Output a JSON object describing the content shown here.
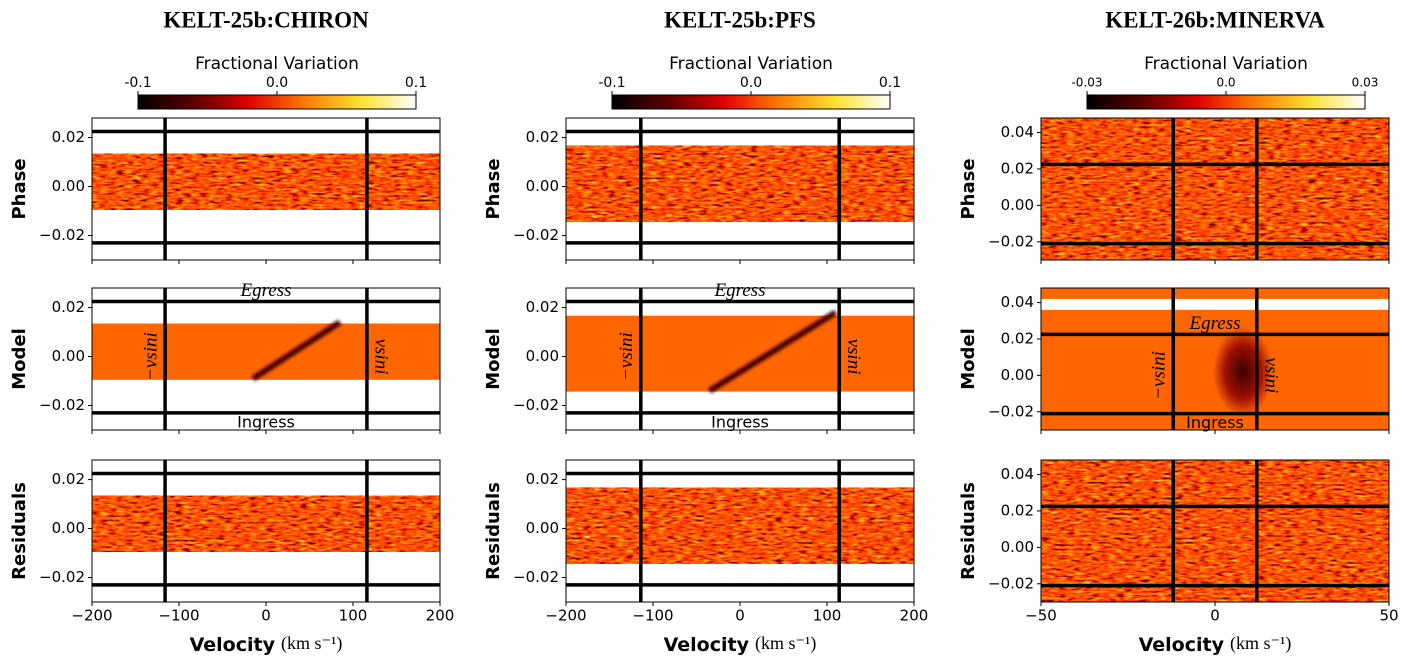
{
  "chart_data": [
    {
      "type": "heatmap",
      "title": "KELT-25b:CHIRON",
      "colorbar": {
        "label": "Fractional Variation",
        "lim": [
          -0.1,
          0.1
        ],
        "ticks": [
          -0.1,
          {
            "value": 0,
            "label": "0.0"
          },
          0.1
        ]
      },
      "xlabel": "Velocity",
      "xunit": "(km s⁻¹)",
      "xlim": [
        -200,
        200
      ],
      "xticks": [
        {
          "value": -200,
          "label": "−200"
        },
        {
          "value": -100,
          "label": "−100"
        },
        0,
        100,
        200
      ],
      "ylim": [
        -0.03,
        0.028
      ],
      "yticks": [
        {
          "value": -0.02,
          "label": "−0.02"
        },
        {
          "value": 0,
          "label": "0.00"
        },
        0.02
      ],
      "vsini_lines": [
        -116,
        116
      ],
      "transit_lines": [
        -0.023,
        0.0225
      ],
      "annotations": {
        "egress": "Egress",
        "ingress": "Ingress",
        "minus_vsini": "−vsini",
        "vsini": "vsini"
      },
      "panels": [
        {
          "ylabel": "Phase",
          "style": "noise",
          "bands": [
            [
              -0.0095,
              0.0135
            ]
          ]
        },
        {
          "ylabel": "Model",
          "style": "model",
          "bands": [
            [
              -0.0095,
              0.0135
            ]
          ],
          "track": {
            "x": [
              -15,
              85
            ],
            "y": [
              -0.009,
              0.014
            ]
          }
        },
        {
          "ylabel": "Residuals",
          "style": "noise",
          "bands": [
            [
              -0.0095,
              0.0135
            ]
          ]
        }
      ]
    },
    {
      "type": "heatmap",
      "title": "KELT-25b:PFS",
      "colorbar": {
        "label": "Fractional Variation",
        "lim": [
          -0.1,
          0.1
        ],
        "ticks": [
          -0.1,
          {
            "value": 0,
            "label": "0.0"
          },
          0.1
        ]
      },
      "xlabel": "Velocity",
      "xunit": "(km s⁻¹)",
      "xlim": [
        -200,
        200
      ],
      "xticks": [
        {
          "value": -200,
          "label": "−200"
        },
        {
          "value": -100,
          "label": "−100"
        },
        0,
        100,
        200
      ],
      "ylim": [
        -0.03,
        0.028
      ],
      "yticks": [
        {
          "value": -0.02,
          "label": "−0.02"
        },
        {
          "value": 0,
          "label": "0.00"
        },
        0.02
      ],
      "vsini_lines": [
        -114,
        114
      ],
      "transit_lines": [
        -0.023,
        0.0225
      ],
      "annotations": {
        "egress": "Egress",
        "ingress": "Ingress",
        "minus_vsini": "−vsini",
        "vsini": "vsini"
      },
      "panels": [
        {
          "ylabel": "Phase",
          "style": "noise",
          "bands": [
            [
              -0.0143,
              0.0167
            ]
          ]
        },
        {
          "ylabel": "Model",
          "style": "model",
          "bands": [
            [
              -0.0143,
              0.0167
            ]
          ],
          "track": {
            "x": [
              -35,
              110
            ],
            "y": [
              -0.014,
              0.018
            ]
          }
        },
        {
          "ylabel": "Residuals",
          "style": "noise",
          "bands": [
            [
              -0.0143,
              0.0167
            ]
          ]
        }
      ]
    },
    {
      "type": "heatmap",
      "title": "KELT-26b:MINERVA",
      "colorbar": {
        "label": "Fractional Variation",
        "lim": [
          -0.03,
          0.03
        ],
        "ticks": [
          -0.03,
          {
            "value": 0,
            "label": "0.0"
          },
          0.03
        ]
      },
      "xlabel": "Velocity",
      "xunit": "(km s⁻¹)",
      "xlim": [
        -50,
        50
      ],
      "xticks": [
        {
          "value": -50,
          "label": "−50"
        },
        0,
        50
      ],
      "ylim": [
        -0.03,
        0.048
      ],
      "yticks": [
        {
          "value": -0.02,
          "label": "−0.02"
        },
        {
          "value": 0,
          "label": "0.00"
        },
        0.02,
        0.04
      ],
      "vsini_lines": [
        -12,
        12
      ],
      "transit_lines": [
        -0.021,
        0.0225
      ],
      "annotations": {
        "egress": "Egress",
        "ingress": "Ingress",
        "minus_vsini": "−vsini",
        "vsini": "vsini"
      },
      "panels": [
        {
          "ylabel": "Phase",
          "style": "noise",
          "bands": [
            [
              -0.03,
              0.048
            ]
          ]
        },
        {
          "ylabel": "Model",
          "style": "model",
          "bands": [
            [
              -0.03,
              0.036
            ],
            [
              0.042,
              0.048
            ]
          ],
          "shadow": {
            "x": 8,
            "y": 0.002
          }
        },
        {
          "ylabel": "Residuals",
          "style": "noise",
          "bands": [
            [
              -0.03,
              0.048
            ]
          ]
        }
      ]
    }
  ]
}
